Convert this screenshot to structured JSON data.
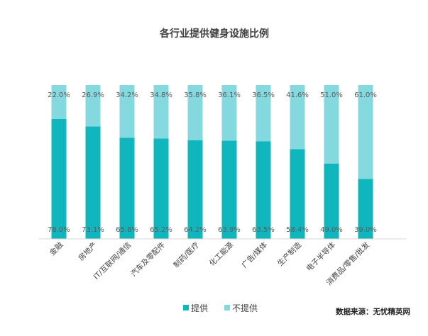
{
  "chart_data": {
    "type": "bar",
    "stacked": true,
    "percent": true,
    "title": "各行业提供健身设施比例",
    "categories": [
      "金融",
      "房地产",
      "IT/互联网/通信",
      "汽车及零配件",
      "制药/医疗",
      "化工能源",
      "广告/媒体",
      "生产制造",
      "电子半导体",
      "消费品/零售/批发"
    ],
    "series": [
      {
        "name": "提供",
        "color": "#10b6be",
        "values": [
          78.0,
          73.1,
          65.8,
          65.2,
          64.2,
          63.9,
          63.5,
          58.4,
          49.0,
          39.0
        ]
      },
      {
        "name": "不提供",
        "color": "#84d9df",
        "values": [
          22.0,
          26.9,
          34.2,
          34.8,
          35.8,
          36.1,
          36.5,
          41.6,
          51.0,
          61.0
        ]
      }
    ],
    "ylim": [
      0,
      100
    ],
    "grid": false,
    "legend": "bottom-center"
  },
  "source": "数据来源：无忧精英网"
}
